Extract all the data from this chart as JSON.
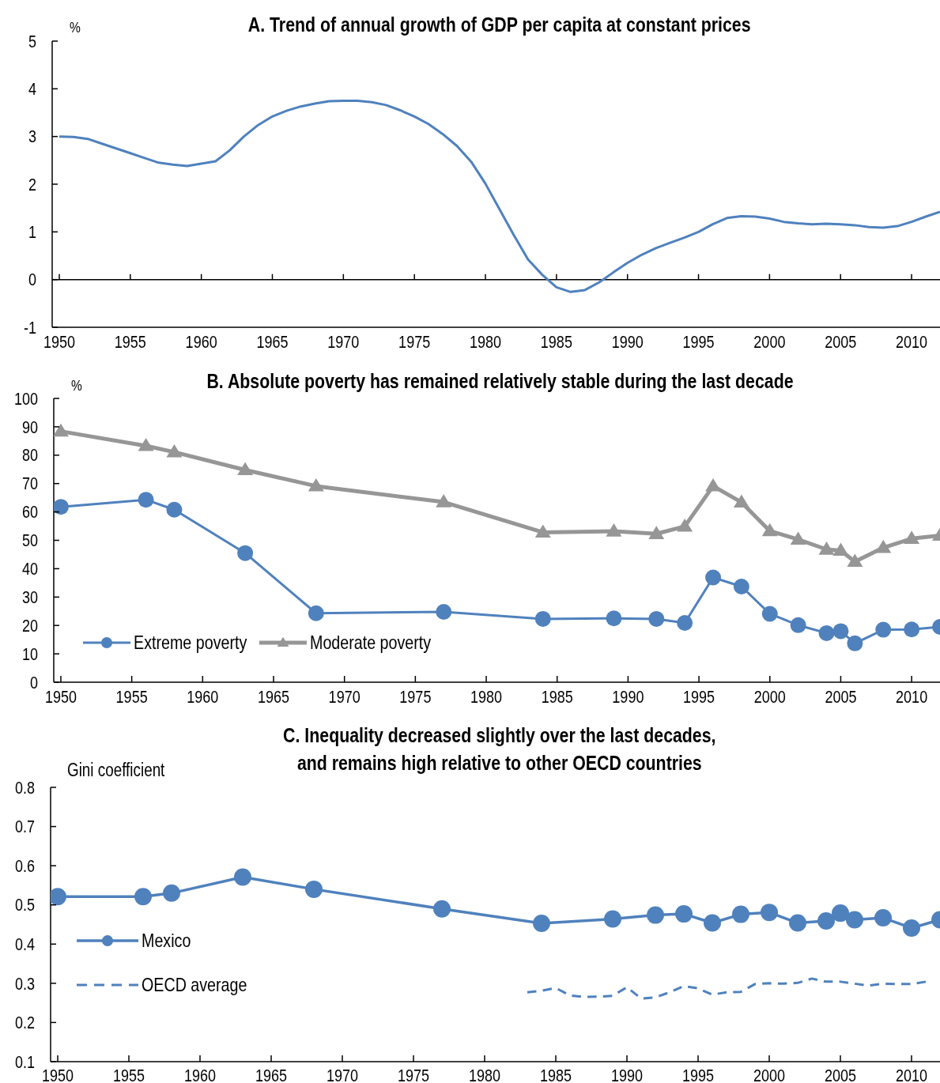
{
  "chart_data": [
    {
      "type": "line",
      "title": "A. Trend of annual growth of GDP per capita at constant prices",
      "ylabel": "%",
      "x": [
        1950,
        1951,
        1952,
        1953,
        1954,
        1955,
        1956,
        1957,
        1958,
        1959,
        1960,
        1961,
        1962,
        1963,
        1964,
        1965,
        1966,
        1967,
        1968,
        1969,
        1970,
        1971,
        1972,
        1973,
        1974,
        1975,
        1976,
        1977,
        1978,
        1979,
        1980,
        1981,
        1982,
        1983,
        1984,
        1985,
        1986,
        1987,
        1988,
        1989,
        1990,
        1991,
        1992,
        1993,
        1994,
        1995,
        1996,
        1997,
        1998,
        1999,
        2000,
        2001,
        2002,
        2003,
        2004,
        2005,
        2006,
        2007,
        2008,
        2009,
        2010,
        2011,
        2012
      ],
      "series": [
        {
          "color": "#4f81bd",
          "values": [
            3.0,
            2.99,
            2.95,
            2.85,
            2.75,
            2.65,
            2.55,
            2.45,
            2.41,
            2.38,
            2.43,
            2.48,
            2.71,
            3.0,
            3.24,
            3.42,
            3.54,
            3.63,
            3.69,
            3.74,
            3.75,
            3.75,
            3.72,
            3.66,
            3.55,
            3.42,
            3.26,
            3.05,
            2.8,
            2.47,
            2.01,
            1.47,
            0.93,
            0.42,
            0.1,
            -0.16,
            -0.26,
            -0.22,
            -0.06,
            0.15,
            0.35,
            0.52,
            0.66,
            0.77,
            0.88,
            1.0,
            1.16,
            1.29,
            1.33,
            1.32,
            1.28,
            1.21,
            1.18,
            1.16,
            1.17,
            1.16,
            1.14,
            1.1,
            1.09,
            1.12,
            1.21,
            1.32,
            1.42
          ]
        }
      ],
      "xlim": [
        1949.5,
        2012
      ],
      "xticks": [
        1950,
        1955,
        1960,
        1965,
        1970,
        1975,
        1980,
        1985,
        1990,
        1995,
        2000,
        2005,
        2010
      ],
      "ylim": [
        -1,
        5
      ],
      "yticks": [
        -1,
        0,
        1,
        2,
        3,
        4,
        5
      ],
      "ref_lines": [
        {
          "axis": "y",
          "value": 0,
          "color": "#000000"
        }
      ]
    },
    {
      "type": "line",
      "title": "B. Absolute poverty has remained relatively stable during the last decade",
      "ylabel": "%",
      "x": [
        1950,
        1956,
        1958,
        1963,
        1968,
        1977,
        1984,
        1989,
        1992,
        1994,
        1996,
        1998,
        2000,
        2002,
        2004,
        2005,
        2006,
        2008,
        2010,
        2012
      ],
      "series": [
        {
          "name": "Extreme poverty",
          "color": "#4f81bd",
          "marker": "circle",
          "values": [
            61.8,
            64.3,
            60.8,
            45.5,
            24.3,
            24.8,
            22.3,
            22.5,
            22.3,
            20.9,
            36.9,
            33.7,
            24.1,
            20.1,
            17.3,
            18.0,
            13.7,
            18.5,
            18.6,
            19.5
          ]
        },
        {
          "name": "Moderate poverty",
          "color": "#969696",
          "marker": "triangle",
          "values": [
            88.4,
            83.3,
            81.1,
            74.8,
            69.1,
            63.5,
            52.8,
            53.2,
            52.3,
            54.9,
            69.1,
            63.4,
            53.3,
            50.3,
            46.8,
            46.4,
            42.5,
            47.4,
            50.6,
            51.7
          ]
        }
      ],
      "xlim": [
        1949.5,
        2012
      ],
      "xticks": [
        1950,
        1955,
        1960,
        1965,
        1970,
        1975,
        1980,
        1985,
        1990,
        1995,
        2000,
        2005,
        2010
      ],
      "ylim": [
        0,
        100
      ],
      "yticks": [
        0,
        10,
        20,
        30,
        40,
        50,
        60,
        70,
        80,
        90,
        100
      ],
      "legend": "bottom left"
    },
    {
      "type": "line",
      "title": "C. Inequality decreased slightly over the last decades,\nand remains high relative to other OECD countries",
      "ylabel": "Gini coefficient",
      "series": [
        {
          "name": "Mexico",
          "color": "#4f81bd",
          "marker": "circle",
          "x": [
            1950,
            1956,
            1958,
            1963,
            1968,
            1977,
            1984,
            1989,
            1992,
            1994,
            1996,
            1998,
            2000,
            2002,
            2004,
            2005,
            2006,
            2008,
            2010,
            2012
          ],
          "values": [
            0.521,
            0.521,
            0.53,
            0.571,
            0.54,
            0.49,
            0.453,
            0.464,
            0.474,
            0.477,
            0.454,
            0.476,
            0.481,
            0.454,
            0.459,
            0.479,
            0.462,
            0.467,
            0.441,
            0.462
          ]
        },
        {
          "name": "OECD average",
          "color": "#4f81bd",
          "line_style": "dashed",
          "x": [
            1983,
            1984,
            1985,
            1986,
            1987,
            1988,
            1989,
            1990,
            1991,
            1992,
            1993,
            1994,
            1995,
            1996,
            1997,
            1998,
            1999,
            2000,
            2001,
            2002,
            2003,
            2004,
            2005,
            2006,
            2007,
            2008,
            2009,
            2010,
            2011
          ],
          "values": [
            0.277,
            0.281,
            0.288,
            0.269,
            0.265,
            0.266,
            0.268,
            0.29,
            0.261,
            0.264,
            0.277,
            0.293,
            0.287,
            0.271,
            0.277,
            0.278,
            0.298,
            0.3,
            0.299,
            0.301,
            0.312,
            0.304,
            0.304,
            0.299,
            0.294,
            0.299,
            0.298,
            0.298,
            0.304
          ]
        }
      ],
      "xlim": [
        1949.5,
        2012
      ],
      "xticks": [
        1950,
        1955,
        1960,
        1965,
        1970,
        1975,
        1980,
        1985,
        1990,
        1995,
        2000,
        2005,
        2010
      ],
      "ylim": [
        0.1,
        0.8
      ],
      "yticks": [
        0.1,
        0.2,
        0.3,
        0.4,
        0.5,
        0.6,
        0.7,
        0.8
      ],
      "legend": "left"
    }
  ]
}
